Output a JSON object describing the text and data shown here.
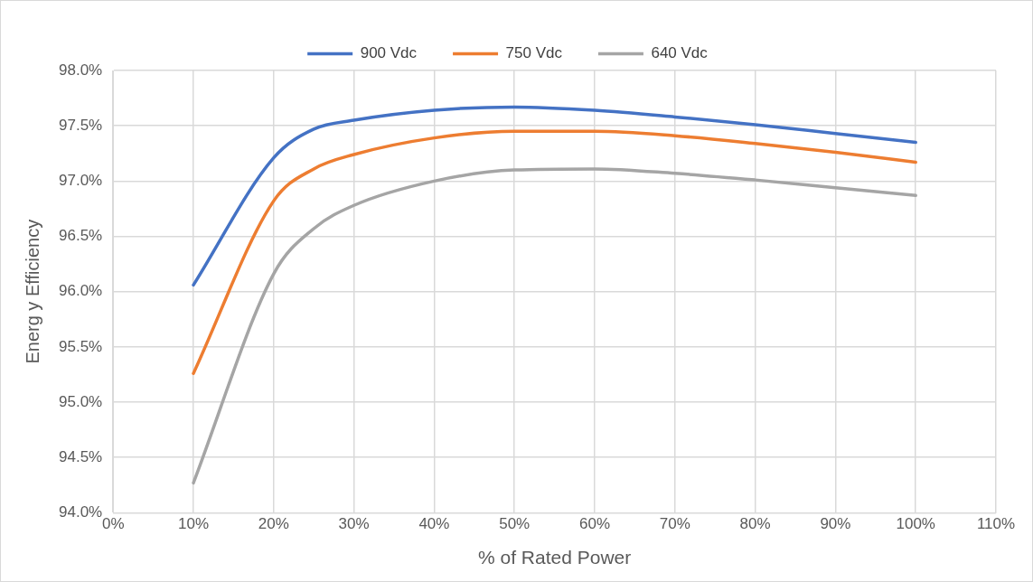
{
  "chart_data": {
    "type": "line",
    "xlabel": "% of Rated Power",
    "ylabel": "Energ y Efficiency",
    "xlim": [
      0,
      110
    ],
    "xticks": [
      {
        "value": 0,
        "label": "0%"
      },
      {
        "value": 10,
        "label": "10%"
      },
      {
        "value": 20,
        "label": "20%"
      },
      {
        "value": 30,
        "label": "30%"
      },
      {
        "value": 40,
        "label": "40%"
      },
      {
        "value": 50,
        "label": "50%"
      },
      {
        "value": 60,
        "label": "60%"
      },
      {
        "value": 70,
        "label": "70%"
      },
      {
        "value": 80,
        "label": "80%"
      },
      {
        "value": 90,
        "label": "90%"
      },
      {
        "value": 100,
        "label": "100%"
      },
      {
        "value": 110,
        "label": "110%"
      }
    ],
    "ylim": [
      94,
      98
    ],
    "yticks": [
      {
        "value": 94,
        "label": "94.0%"
      },
      {
        "value": 94.5,
        "label": "94.5%"
      },
      {
        "value": 95,
        "label": "95.0%"
      },
      {
        "value": 95.5,
        "label": "95.5%"
      },
      {
        "value": 96,
        "label": "96.0%"
      },
      {
        "value": 96.5,
        "label": "96.5%"
      },
      {
        "value": 97,
        "label": "97.0%"
      },
      {
        "value": 97.5,
        "label": "97.5%"
      },
      {
        "value": 98,
        "label": "98.0%"
      }
    ],
    "x": [
      10,
      20,
      25,
      30,
      40,
      50,
      60,
      70,
      80,
      90,
      100
    ],
    "series": [
      {
        "name": "900 Vdc",
        "color": "#4472c4",
        "values": [
          96.06,
          97.21,
          97.47,
          97.55,
          97.64,
          97.67,
          97.64,
          97.58,
          97.51,
          97.43,
          97.35
        ]
      },
      {
        "name": "750 Vdc",
        "color": "#ed7d31",
        "values": [
          95.26,
          96.82,
          97.11,
          97.24,
          97.39,
          97.45,
          97.45,
          97.41,
          97.34,
          97.26,
          97.17
        ]
      },
      {
        "name": "640 Vdc",
        "color": "#a5a5a5",
        "values": [
          94.27,
          96.16,
          96.57,
          96.78,
          97.0,
          97.1,
          97.11,
          97.07,
          97.01,
          96.94,
          96.87
        ]
      }
    ],
    "grid": true,
    "legend": "top",
    "marker": "none",
    "line_style": "solid"
  }
}
